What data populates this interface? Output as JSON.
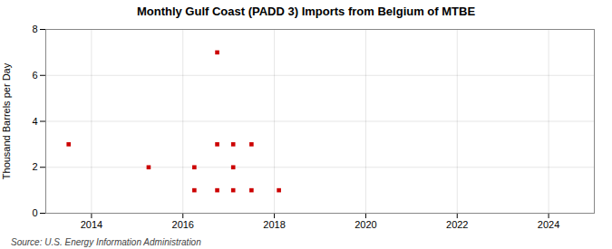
{
  "chart_data": {
    "type": "scatter",
    "title": "Monthly Gulf Coast (PADD 3) Imports from Belgium of MTBE",
    "ylabel": "Thousand Barrels per Day",
    "annotations": [
      "Source: U.S. Energy Information Administration"
    ],
    "x": [
      2013.5,
      2015.25,
      2016.25,
      2016.25,
      2016.75,
      2016.75,
      2016.75,
      2017.1,
      2017.1,
      2017.1,
      2017.5,
      2017.5,
      2018.1
    ],
    "values": [
      3,
      2,
      2,
      1,
      7,
      3,
      1,
      3,
      2,
      1,
      3,
      1,
      1
    ],
    "color": "#cc0000",
    "marker": "square",
    "xlim": [
      2013.0,
      2025.0
    ],
    "xticks": [
      2014,
      2016,
      2018,
      2020,
      2022,
      2024
    ],
    "ylim": [
      0,
      8
    ],
    "yticks": [
      0,
      2,
      4,
      6,
      8
    ],
    "grid": true
  }
}
